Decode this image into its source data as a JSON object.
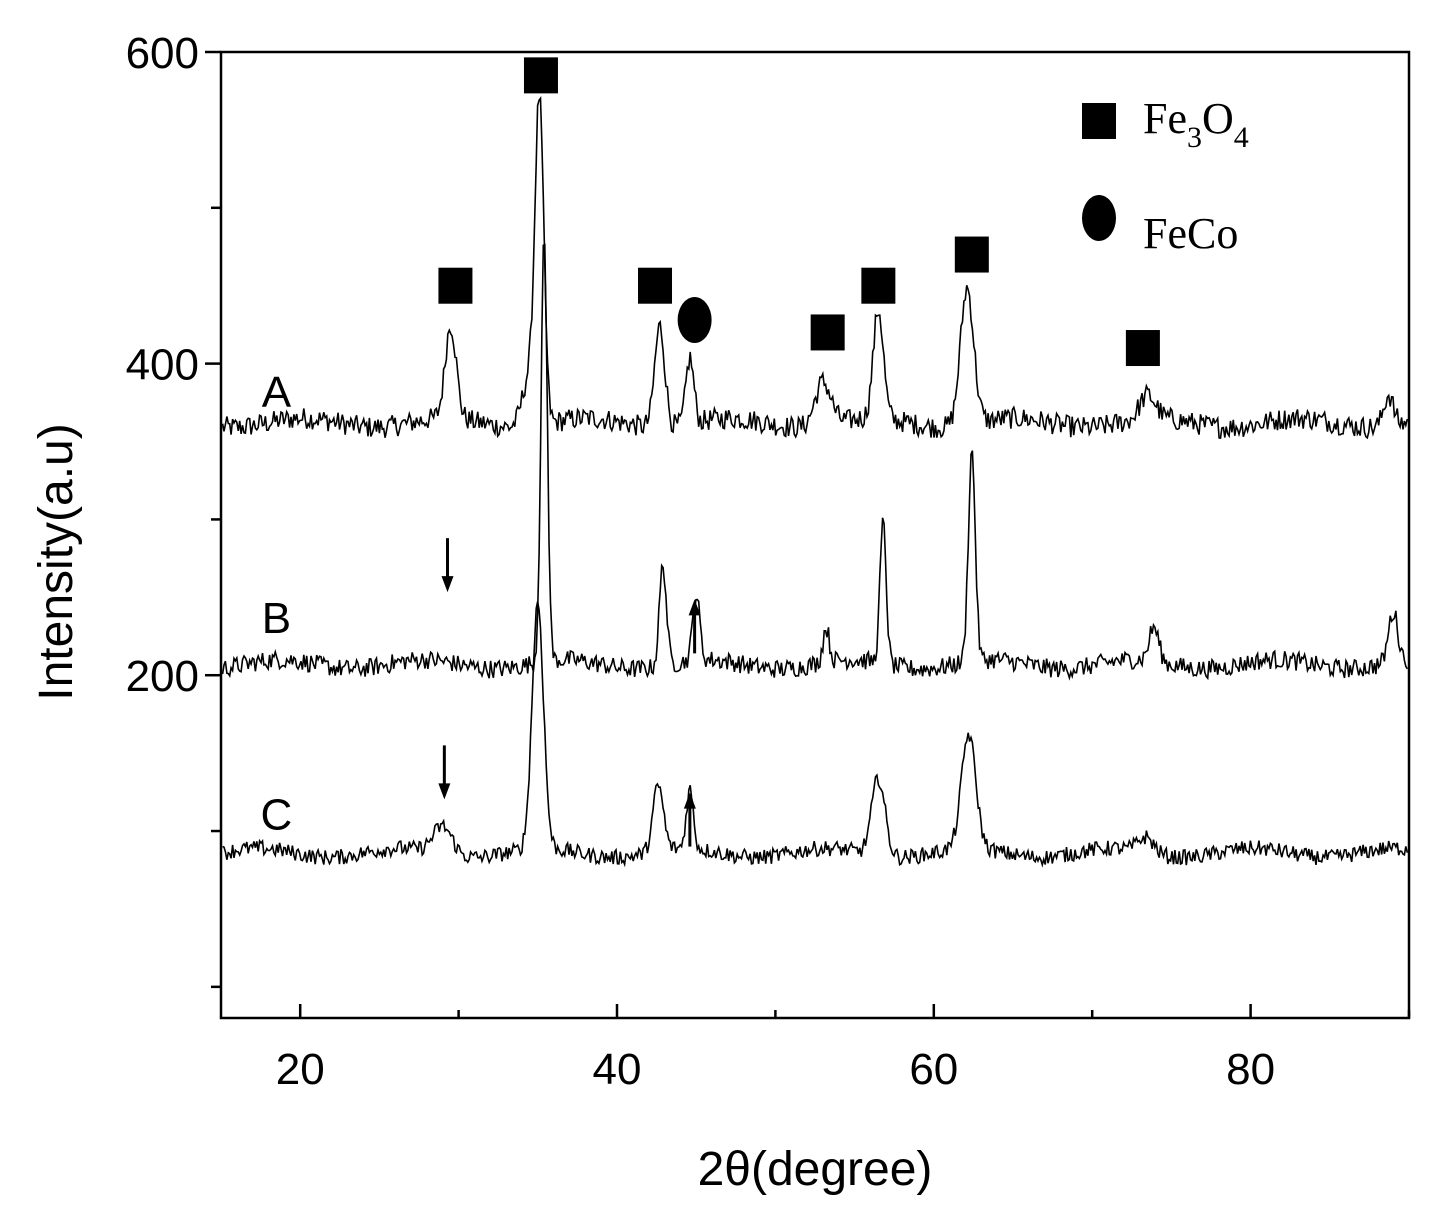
{
  "chart_data": {
    "type": "line",
    "title": "",
    "xlabel": "2θ(degree)",
    "ylabel": "Intensity(a.u)",
    "xlim": [
      15,
      90
    ],
    "ylim": [
      -20,
      600
    ],
    "x_ticks": [
      20,
      40,
      60,
      80
    ],
    "y_ticks": [
      200,
      400,
      600
    ],
    "grid": false,
    "legend_position": "top-right",
    "legend": [
      {
        "marker": "square",
        "base": "Fe",
        "sub1": "3",
        "mid": "O",
        "sub2": "4",
        "label": "Fe3O4"
      },
      {
        "marker": "circle",
        "label": "FeCo"
      }
    ],
    "series": [
      {
        "name": "A",
        "baseline": 362,
        "peaks": [
          {
            "x": 29.5,
            "h": 60,
            "w": 0.35
          },
          {
            "x": 35.1,
            "h": 205,
            "w": 0.28
          },
          {
            "x": 34.4,
            "h": 30,
            "w": 0.4
          },
          {
            "x": 42.7,
            "h": 65,
            "w": 0.32
          },
          {
            "x": 44.6,
            "h": 42,
            "w": 0.25
          },
          {
            "x": 53.0,
            "h": 28,
            "w": 0.5
          },
          {
            "x": 56.5,
            "h": 70,
            "w": 0.32
          },
          {
            "x": 62.1,
            "h": 88,
            "w": 0.42
          },
          {
            "x": 73.5,
            "h": 15,
            "w": 0.5
          },
          {
            "x": 88.7,
            "h": 20,
            "w": 0.3
          }
        ],
        "noise": 7
      },
      {
        "name": "B",
        "baseline": 207,
        "peaks": [
          {
            "x": 35.4,
            "h": 270,
            "w": 0.2
          },
          {
            "x": 42.9,
            "h": 65,
            "w": 0.22
          },
          {
            "x": 45.0,
            "h": 42,
            "w": 0.22
          },
          {
            "x": 53.2,
            "h": 22,
            "w": 0.2
          },
          {
            "x": 56.8,
            "h": 90,
            "w": 0.2
          },
          {
            "x": 62.4,
            "h": 135,
            "w": 0.22
          },
          {
            "x": 73.9,
            "h": 22,
            "w": 0.3
          },
          {
            "x": 89.0,
            "h": 32,
            "w": 0.3
          }
        ],
        "noise": 6
      },
      {
        "name": "C",
        "baseline": 86,
        "peaks": [
          {
            "x": 29.0,
            "h": 18,
            "w": 0.6
          },
          {
            "x": 35.0,
            "h": 158,
            "w": 0.36
          },
          {
            "x": 42.6,
            "h": 42,
            "w": 0.33
          },
          {
            "x": 44.6,
            "h": 38,
            "w": 0.22
          },
          {
            "x": 56.5,
            "h": 50,
            "w": 0.42
          },
          {
            "x": 62.2,
            "h": 73,
            "w": 0.45
          },
          {
            "x": 73.4,
            "h": 10,
            "w": 0.5
          }
        ],
        "noise": 5
      }
    ],
    "annotations": {
      "fe3o4_markers": [
        [
          29.8,
          450
        ],
        [
          35.2,
          585
        ],
        [
          42.4,
          450
        ],
        [
          53.3,
          420
        ],
        [
          56.5,
          450
        ],
        [
          62.4,
          470
        ],
        [
          73.2,
          410
        ]
      ],
      "feco_markers": [
        [
          44.9,
          428
        ]
      ],
      "arrows": [
        {
          "series": "B",
          "x": 29.3,
          "y": 270,
          "direction": "down"
        },
        {
          "series": "B",
          "x": 44.9,
          "y": 232,
          "direction": "up"
        },
        {
          "series": "C",
          "x": 29.1,
          "y": 137,
          "direction": "down"
        },
        {
          "series": "C",
          "x": 44.6,
          "y": 108,
          "direction": "up"
        }
      ]
    }
  }
}
